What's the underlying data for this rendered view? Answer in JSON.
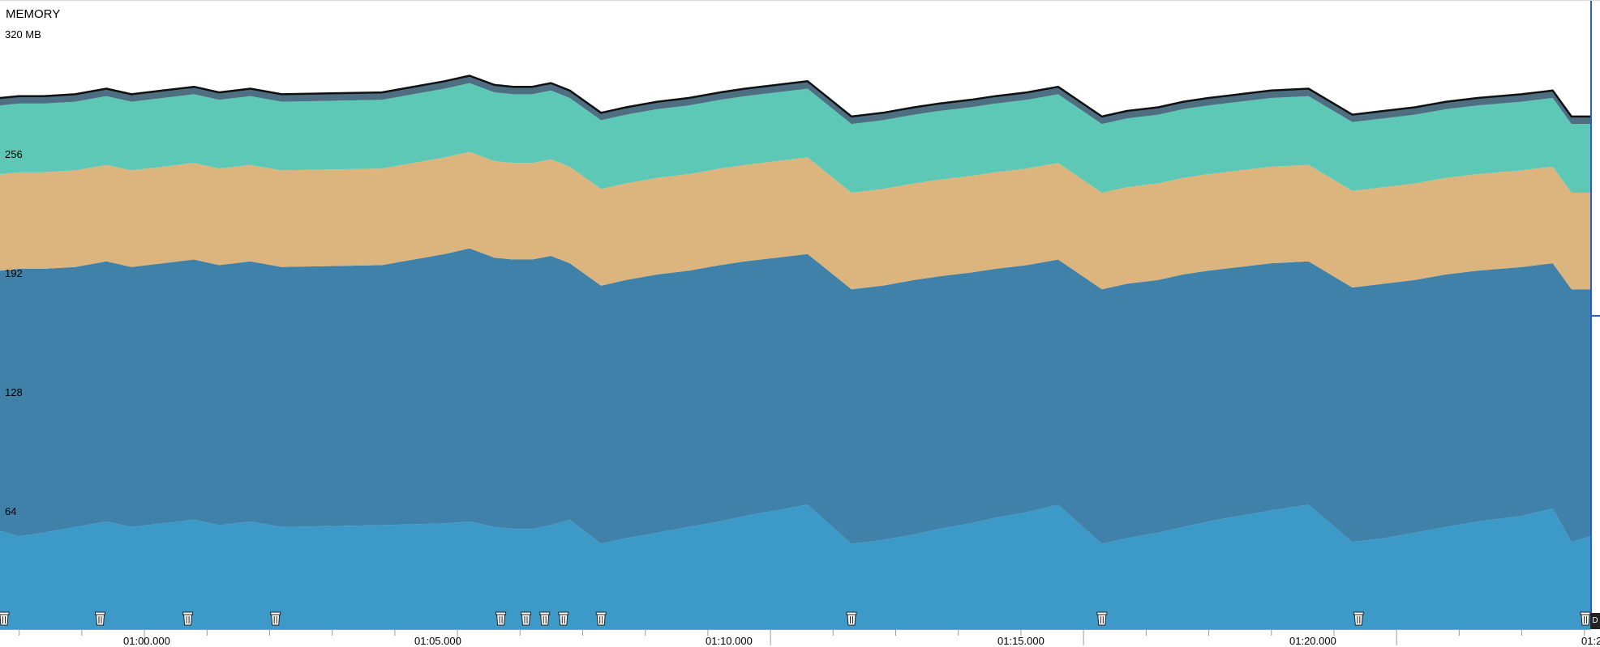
{
  "header": {
    "title": "MEMORY",
    "unit_label": "320 MB"
  },
  "y_axis": {
    "tick_labels": [
      "256",
      "192",
      "128",
      "64"
    ]
  },
  "x_axis": {
    "time_labels": [
      "01:00.000",
      "01:05.000",
      "01:10.000",
      "01:15.000",
      "01:20.000",
      "01:2"
    ]
  },
  "corner_marker": "D",
  "colors": {
    "layer_bottom": "#3d9ac8",
    "layer_dark_blue": "#3f81a9",
    "layer_tan": "#dcb57e",
    "layer_teal": "#5dc8b6",
    "layer_slate": "#4e6f82",
    "outline": "#111111",
    "selection_line": "#2c5ec9"
  },
  "chart_data": {
    "type": "area",
    "title": "MEMORY",
    "ylabel": "",
    "ylim": [
      0,
      320
    ],
    "y_unit": "MB",
    "y_ticks": [
      64,
      128,
      192,
      256,
      320
    ],
    "grid": false,
    "stacked": true,
    "x_time_seconds": [
      57.7,
      58.0,
      58.4,
      58.9,
      59.4,
      59.8,
      60.3,
      60.8,
      61.2,
      61.7,
      62.2,
      63.8,
      64.8,
      65.2,
      65.6,
      65.9,
      66.2,
      66.5,
      66.8,
      67.3,
      67.7,
      68.2,
      68.7,
      69.2,
      69.6,
      70.1,
      70.6,
      71.3,
      71.8,
      72.3,
      72.7,
      73.2,
      73.6,
      74.1,
      74.6,
      75.3,
      75.7,
      76.2,
      76.6,
      77.0,
      77.5,
      78.0,
      78.6,
      79.3,
      79.8,
      80.3,
      80.8,
      81.3,
      82.0,
      82.5,
      82.8,
      83.1
    ],
    "series": [
      {
        "values": [
          53,
          50,
          52,
          55,
          58,
          55,
          57,
          59,
          56,
          58,
          55,
          56,
          57,
          58,
          55,
          54,
          54,
          56,
          59,
          46,
          49,
          52,
          55,
          58,
          61,
          64,
          67,
          46,
          48,
          51,
          54,
          57,
          60,
          63,
          67,
          46,
          49,
          52,
          55,
          58,
          61,
          64,
          67,
          47,
          49,
          52,
          55,
          58,
          61,
          65,
          47,
          50
        ]
      },
      {
        "values": [
          140,
          144,
          142,
          140,
          140,
          140,
          140,
          140,
          140,
          140,
          140,
          140,
          145,
          147,
          145,
          145,
          145,
          145,
          138,
          139,
          139,
          139,
          138,
          138,
          137,
          136,
          135,
          137,
          137,
          137,
          136,
          135,
          134,
          133,
          132,
          137,
          137,
          136,
          136,
          135,
          134,
          133,
          131,
          137,
          137,
          136,
          136,
          135,
          134,
          132,
          136,
          133
        ]
      },
      {
        "values": [
          52,
          52,
          52,
          52,
          52,
          52,
          52,
          52,
          52,
          52,
          52,
          52,
          52,
          52,
          52,
          52,
          52,
          52,
          52,
          52,
          52,
          52,
          52,
          52,
          52,
          52,
          52,
          52,
          52,
          52,
          52,
          52,
          52,
          52,
          52,
          52,
          52,
          52,
          52,
          52,
          52,
          52,
          52,
          52,
          52,
          52,
          52,
          52,
          52,
          52,
          52,
          52
        ]
      },
      {
        "values": [
          37,
          37,
          37,
          37,
          37,
          37,
          37,
          37,
          37,
          37,
          37,
          37,
          37,
          37,
          37,
          37,
          37,
          37,
          37,
          37,
          37,
          37,
          37,
          37,
          37,
          37,
          37,
          37,
          37,
          37,
          37,
          37,
          37,
          37,
          37,
          37,
          37,
          37,
          37,
          37,
          37,
          37,
          37,
          37,
          37,
          37,
          37,
          37,
          37,
          37,
          37,
          37
        ]
      },
      {
        "values": [
          4,
          4,
          4,
          4,
          4,
          4,
          4,
          4,
          4,
          4,
          4,
          4,
          4,
          4,
          4,
          4,
          4,
          4,
          4,
          4,
          4,
          4,
          4,
          4,
          4,
          4,
          4,
          4,
          4,
          4,
          4,
          4,
          4,
          4,
          4,
          4,
          4,
          4,
          4,
          4,
          4,
          4,
          4,
          4,
          4,
          4,
          4,
          4,
          4,
          4,
          4,
          4
        ]
      }
    ],
    "gc_event_times_seconds": [
      57.7,
      59.3,
      60.7,
      62.1,
      65.7,
      66.1,
      66.4,
      66.7,
      67.3,
      71.3,
      75.3,
      79.4,
      83.4
    ]
  }
}
